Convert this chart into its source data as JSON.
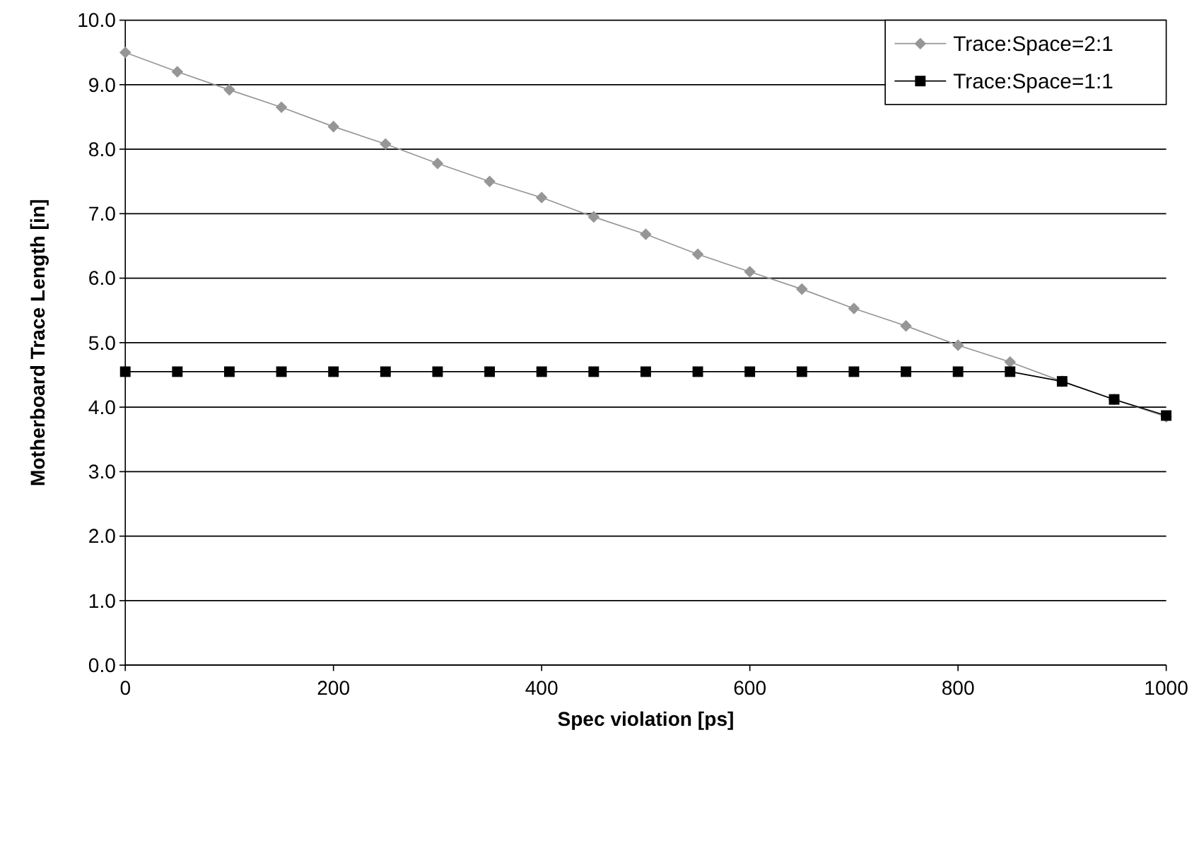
{
  "chart_data": {
    "type": "line",
    "xlabel": "Spec violation [ps]",
    "ylabel": "Motherboard Trace Length [in]",
    "x": [
      0,
      50,
      100,
      150,
      200,
      250,
      300,
      350,
      400,
      450,
      500,
      550,
      600,
      650,
      700,
      750,
      800,
      850,
      900,
      950,
      1000
    ],
    "xlim": [
      0,
      1000
    ],
    "xticks": [
      0,
      200,
      400,
      600,
      800,
      1000
    ],
    "ylim": [
      0,
      10
    ],
    "yticks": [
      {
        "value": 0,
        "label": "0.0"
      },
      {
        "value": 1,
        "label": "1.0"
      },
      {
        "value": 2,
        "label": "2.0"
      },
      {
        "value": 3,
        "label": "3.0"
      },
      {
        "value": 4,
        "label": "4.0"
      },
      {
        "value": 5,
        "label": "5.0"
      },
      {
        "value": 6,
        "label": "6.0"
      },
      {
        "value": 7,
        "label": "7.0"
      },
      {
        "value": 8,
        "label": "8.0"
      },
      {
        "value": 9,
        "label": "9.0"
      },
      {
        "value": 10,
        "label": "10.0"
      }
    ],
    "grid": "y",
    "legend": "top right",
    "series": [
      {
        "name": "Trace:Space=2:1",
        "color": "#969696",
        "marker": "diamond",
        "values": [
          9.5,
          9.2,
          8.92,
          8.65,
          8.35,
          8.08,
          7.78,
          7.5,
          7.25,
          6.95,
          6.68,
          6.37,
          6.1,
          5.83,
          5.53,
          5.26,
          4.96,
          4.7,
          4.4,
          4.12,
          3.85
        ]
      },
      {
        "name": "Trace:Space=1:1",
        "color": "#000000",
        "marker": "square",
        "values": [
          4.55,
          4.55,
          4.55,
          4.55,
          4.55,
          4.55,
          4.55,
          4.55,
          4.55,
          4.55,
          4.55,
          4.55,
          4.55,
          4.55,
          4.55,
          4.55,
          4.55,
          4.55,
          4.4,
          4.12,
          3.87
        ]
      }
    ]
  }
}
